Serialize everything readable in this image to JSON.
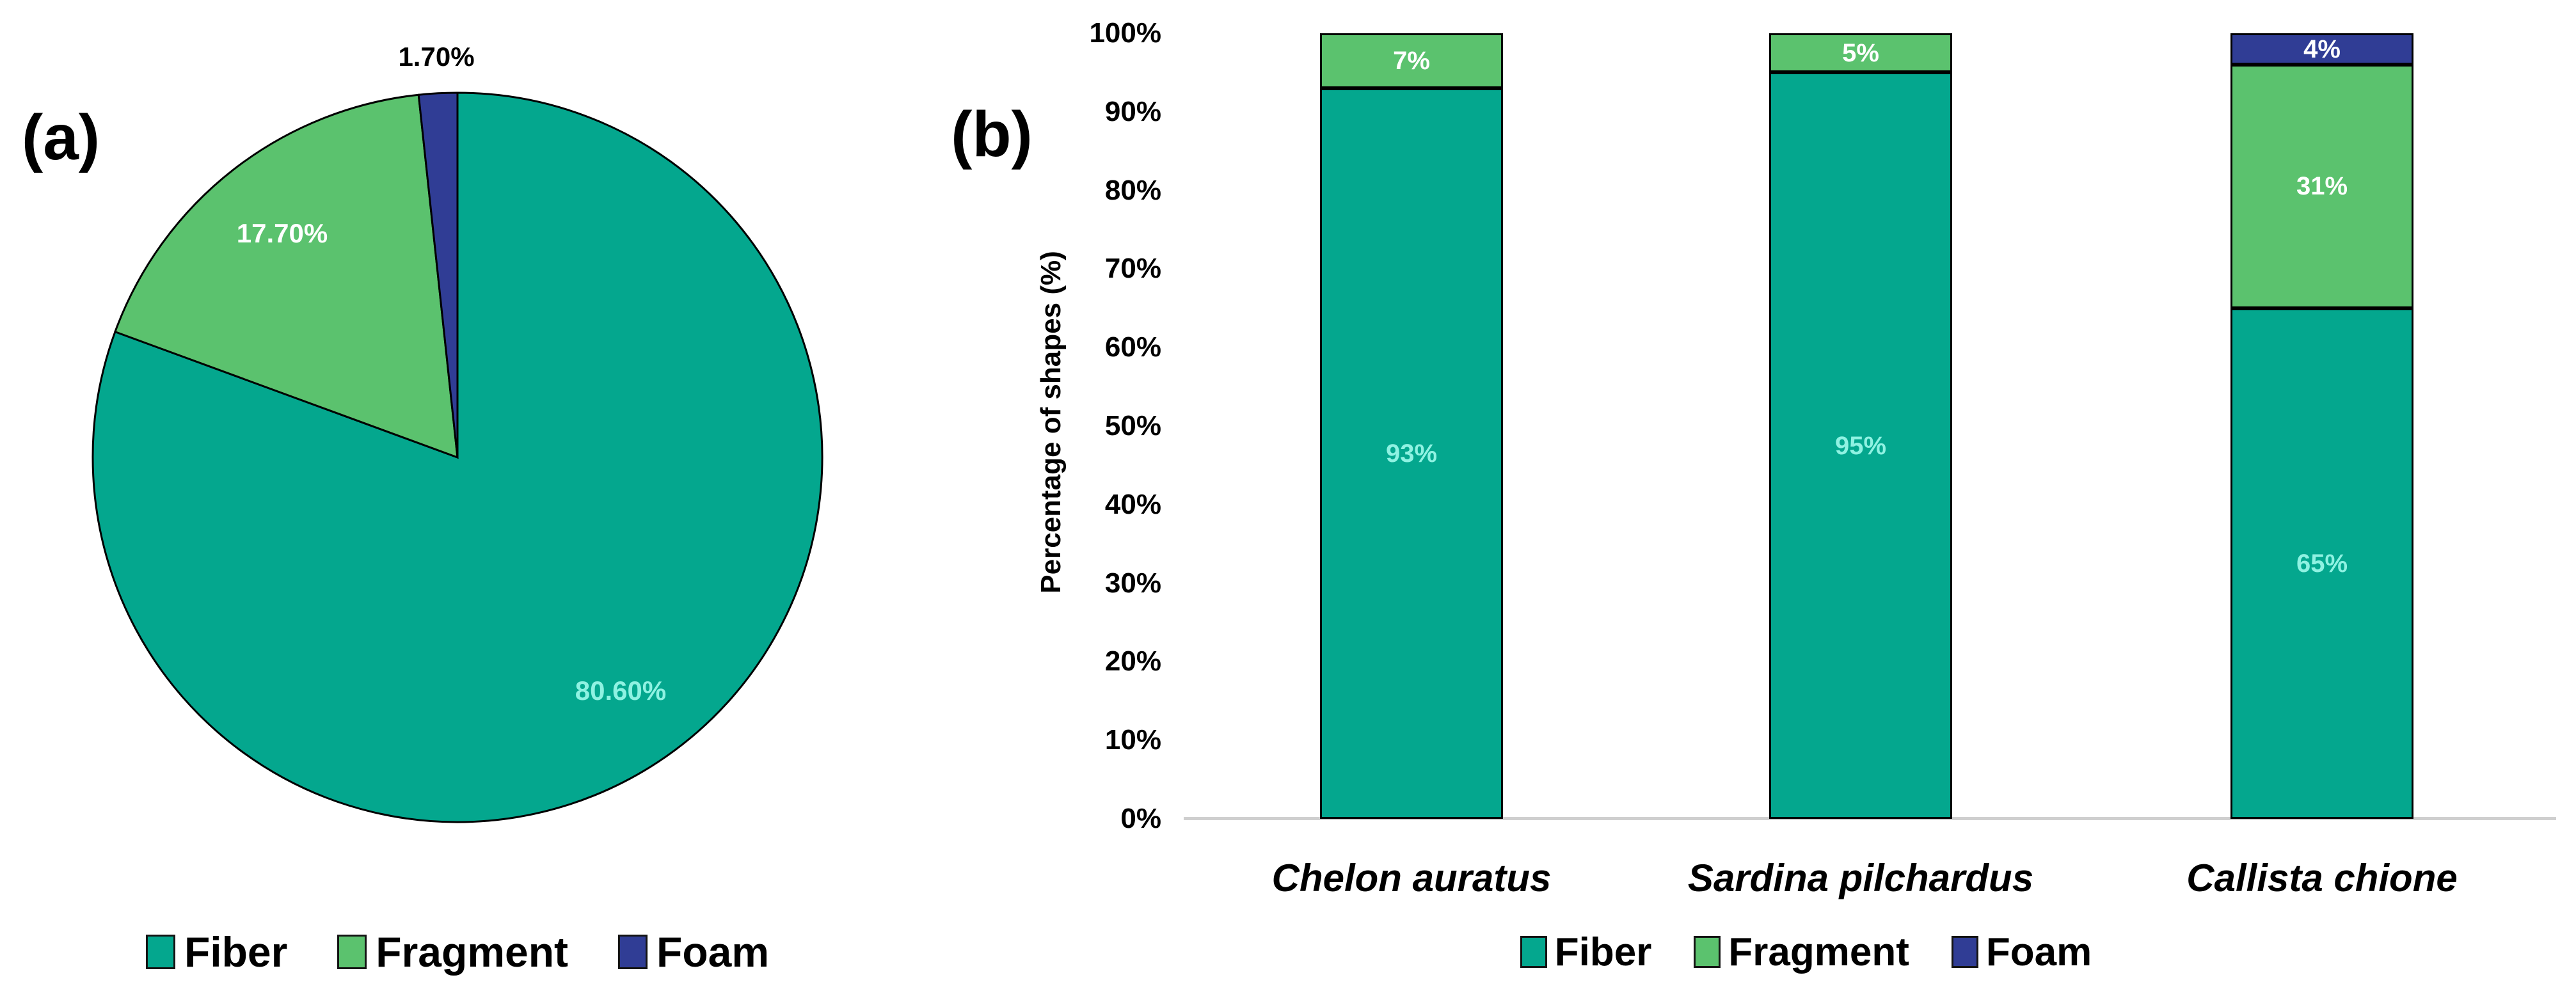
{
  "figure": {
    "panel_a_label": "(a)",
    "panel_b_label": "(b)"
  },
  "chart_data": [
    {
      "type": "pie",
      "panel": "a",
      "title": "",
      "labels": [
        "Fiber",
        "Fragment",
        "Foam"
      ],
      "values": [
        80.6,
        17.7,
        1.7
      ],
      "value_labels": [
        "80.60%",
        "17.70%",
        "1.70%"
      ],
      "label_placement": [
        "inside",
        "inside",
        "outside"
      ],
      "colors": [
        "#04A78E",
        "#5BC26E",
        "#303D95"
      ],
      "value_label_colors": [
        "#8FF2E2",
        "#FFFFFF",
        "#000000"
      ],
      "start_angle_deg": 0,
      "direction": "clockwise",
      "legend": [
        "Fiber",
        "Fragment",
        "Foam"
      ],
      "legend_position": "bottom"
    },
    {
      "type": "bar",
      "stacked": true,
      "panel": "b",
      "categories": [
        "Chelon auratus",
        "Sardina pilchardus",
        "Callista chione"
      ],
      "series": [
        {
          "name": "Fiber",
          "values": [
            93,
            95,
            65
          ],
          "color": "#04A78E",
          "label_color": "#8FF2E2",
          "value_labels": [
            "93%",
            "95%",
            "65%"
          ]
        },
        {
          "name": "Fragment",
          "values": [
            7,
            5,
            31
          ],
          "color": "#5BC26E",
          "label_color": "#FFFFFF",
          "value_labels": [
            "7%",
            "5%",
            "31%"
          ]
        },
        {
          "name": "Foam",
          "values": [
            0,
            0,
            4
          ],
          "color": "#303D95",
          "label_color": "#FFFFFF",
          "value_labels": [
            "",
            "",
            "4%"
          ]
        }
      ],
      "ylabel": "Percentage of shapes (%)",
      "ylim": [
        0,
        100
      ],
      "ytick_step": 10,
      "ytick_labels": [
        "0%",
        "10%",
        "20%",
        "30%",
        "40%",
        "50%",
        "60%",
        "70%",
        "80%",
        "90%",
        "100%"
      ],
      "gridlines": false,
      "axis_line_color": "#CFCFCF",
      "legend": [
        "Fiber",
        "Fragment",
        "Foam"
      ],
      "legend_position": "bottom"
    }
  ]
}
